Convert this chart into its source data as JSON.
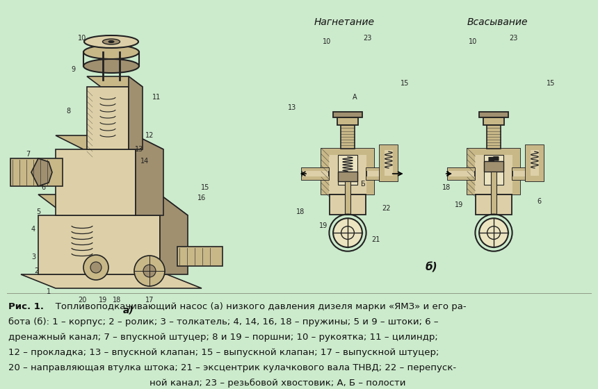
{
  "background_color": "#cceacc",
  "fig_width": 8.6,
  "fig_height": 5.6,
  "dpi": 100,
  "caption_bold": "Рис. 1.",
  "caption_rest_line1": "   Топливоподкачивающий насос (а) низкого давления дизеля марки «ЯМЗ» и его ра-",
  "caption_line2": "бота (б): \u00031 – корпус; \u00032 – ролик; \u00033 – толкатель; \u00034, \u000314, \u000316, \u000318 – пружины; \u00035 и \u00039 – штоки; \u00036 –",
  "caption_line2_plain": "бота (б): 1 – корпус; 2 – ролик; 3 – толкатель; 4, 14, 16, 18 – пружины; 5 и 9 – штоки; 6 –",
  "caption_line3": "дренажный канал; 7 – впускной штуцер; 8 и 19 – поршни; 10 – рукоятка; 11 – цилиндр;",
  "caption_line4": "12 – прокладка; 13 – впускной клапан; 15 – выпускной клапан; 17 – выпускной штуцер;",
  "caption_line5": "20 – направляющая втулка штока; 21 – эксцентрик кулачкового вала ТНВД; 22 – перепуск-",
  "caption_line6": "ной канал; 23 – резьбовой хвостовик; А, Б – полости",
  "label_nagnetanie": "Нагнетание",
  "label_vsasyvanie": "Всасывание",
  "label_a": "а)",
  "label_b": "б)",
  "text_color": "#111111",
  "line_color": "#222222",
  "fill_dark": "#a09070",
  "fill_mid": "#c8b888",
  "fill_light": "#ddd0a8",
  "fill_very_light": "#ece4c0",
  "hatch_color": "#888060"
}
